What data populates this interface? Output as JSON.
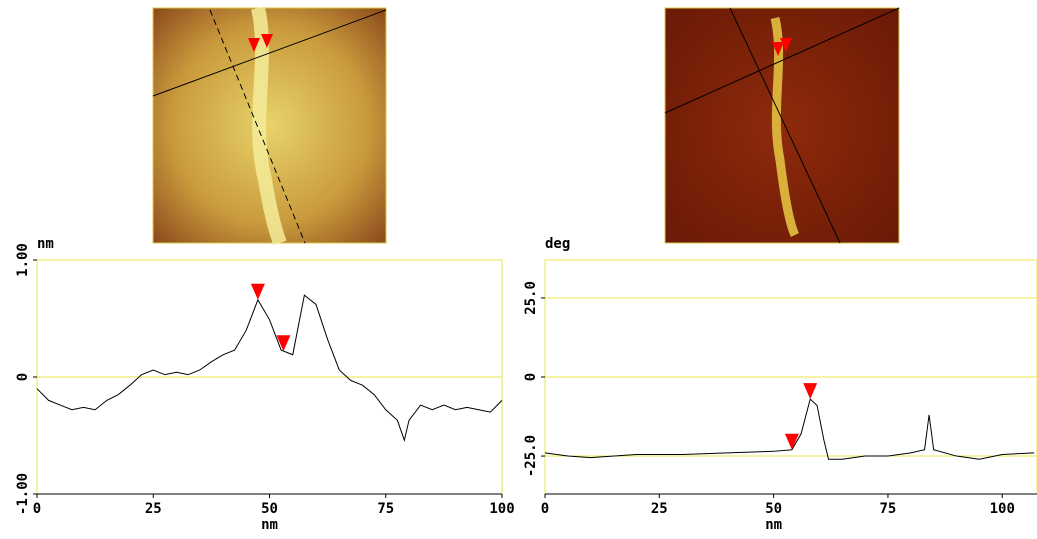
{
  "chart_data": [
    {
      "type": "line",
      "y_unit": "nm",
      "xlabel": "nm",
      "color": "#000000",
      "grid_color": "#e8e84a",
      "xlim": [
        0,
        100
      ],
      "ylim": [
        -1,
        1
      ],
      "xticks": [
        0,
        25,
        50,
        75,
        100
      ],
      "yticks": [
        {
          "value": -1,
          "label": "-1.00"
        },
        0,
        {
          "value": 1,
          "label": "1.00"
        }
      ],
      "x": [
        0,
        2.5,
        5,
        7.5,
        10,
        12.5,
        15,
        17.5,
        20,
        22.5,
        25,
        27.5,
        30,
        32.5,
        35,
        37.5,
        40,
        42.5,
        45,
        47.5,
        50,
        52.5,
        55,
        57.5,
        60,
        62.5,
        65,
        67.5,
        70,
        72.5,
        75,
        77.5,
        79,
        80,
        82.5,
        85,
        87.5,
        90,
        92.5,
        95,
        97.5,
        100
      ],
      "values": [
        -0.1,
        -0.2,
        -0.24,
        -0.28,
        -0.26,
        -0.28,
        -0.2,
        -0.15,
        -0.07,
        0.02,
        0.06,
        0.02,
        0.04,
        0.02,
        0.06,
        0.13,
        0.19,
        0.23,
        0.4,
        0.66,
        0.49,
        0.23,
        0.19,
        0.7,
        0.62,
        0.32,
        0.06,
        -0.03,
        -0.07,
        -0.15,
        -0.28,
        -0.37,
        -0.54,
        -0.37,
        -0.24,
        -0.28,
        -0.24,
        -0.28,
        -0.26,
        -0.28,
        -0.3,
        -0.2
      ],
      "markers": [
        {
          "x": 47.5,
          "y": 0.66
        },
        {
          "x": 53,
          "y": 0.22
        }
      ],
      "marker_color": "#ff0000"
    },
    {
      "type": "line",
      "y_unit": "deg",
      "xlabel": "nm",
      "color": "#000000",
      "grid_color": "#e8e84a",
      "xlim": [
        0,
        107.6
      ],
      "ylim": [
        -37,
        37
      ],
      "xticks": [
        0,
        25,
        50,
        75,
        100
      ],
      "yticks": [
        {
          "value": -25,
          "label": "-25.0"
        },
        0,
        {
          "value": 25,
          "label": "25.0"
        }
      ],
      "x": [
        0,
        5,
        10,
        20,
        30,
        40,
        50,
        54,
        56,
        58,
        59.5,
        61,
        62,
        65,
        70,
        75,
        80,
        83,
        84,
        85,
        90,
        95,
        100,
        107
      ],
      "values": [
        -24,
        -25,
        -25.5,
        -24.5,
        -24.5,
        -24,
        -23.5,
        -23,
        -18,
        -7,
        -9,
        -20,
        -26,
        -26,
        -25,
        -25,
        -24,
        -23,
        -12,
        -23,
        -25,
        -26,
        -24.5,
        -24
      ],
      "markers": [
        {
          "x": 54,
          "y": -23
        },
        {
          "x": 58,
          "y": -7
        }
      ],
      "marker_color": "#ff0000"
    }
  ]
}
